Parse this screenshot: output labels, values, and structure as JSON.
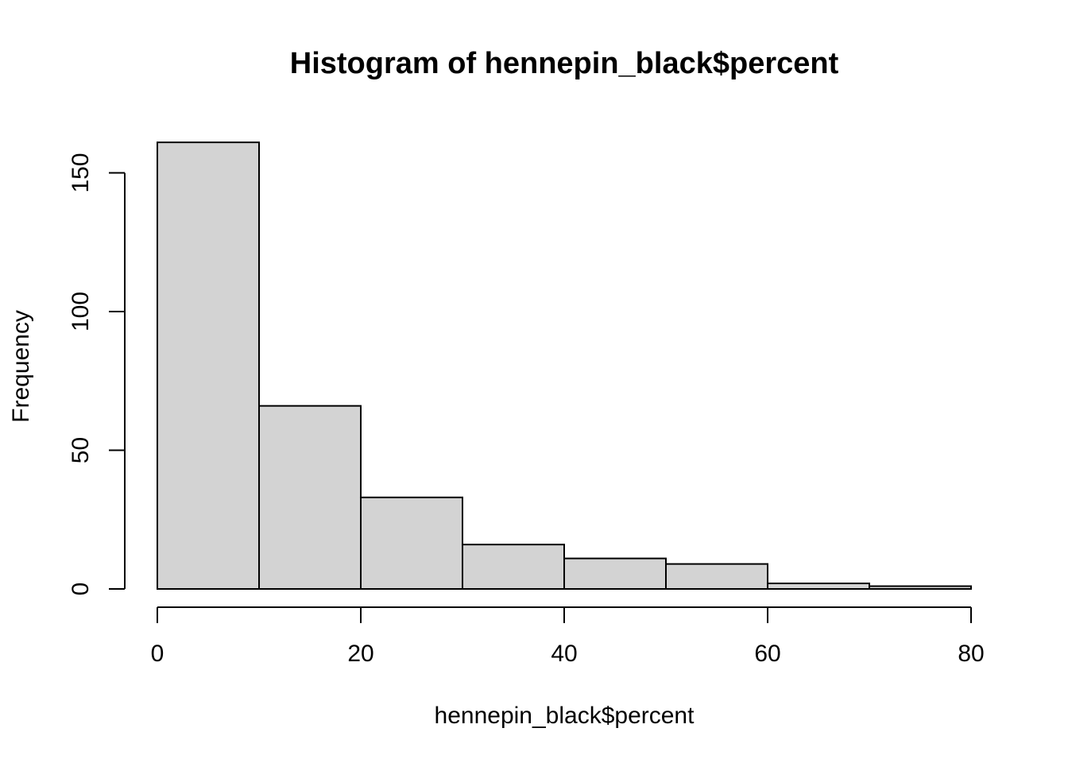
{
  "chart_data": {
    "type": "bar",
    "title": "Histogram of hennepin_black$percent",
    "xlabel": "hennepin_black$percent",
    "ylabel": "Frequency",
    "bins": [
      {
        "start": 0,
        "end": 10,
        "count": 161
      },
      {
        "start": 10,
        "end": 20,
        "count": 66
      },
      {
        "start": 20,
        "end": 30,
        "count": 33
      },
      {
        "start": 30,
        "end": 40,
        "count": 16
      },
      {
        "start": 40,
        "end": 50,
        "count": 11
      },
      {
        "start": 50,
        "end": 60,
        "count": 9
      },
      {
        "start": 60,
        "end": 70,
        "count": 2
      },
      {
        "start": 70,
        "end": 80,
        "count": 1
      }
    ],
    "xticks": [
      0,
      20,
      40,
      60,
      80
    ],
    "yticks": [
      0,
      50,
      100,
      150
    ],
    "xlim": [
      0,
      80
    ],
    "ylim": [
      0,
      161
    ],
    "grid": false,
    "colors": {
      "bar_fill": "#d3d3d3",
      "bar_stroke": "#000000"
    }
  }
}
